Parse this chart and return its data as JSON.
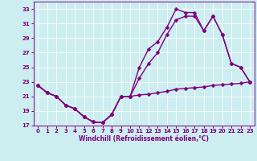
{
  "bg_color": "#cceef0",
  "grid_color": "#ffffff",
  "line_color": "#800080",
  "markersize": 2.5,
  "linewidth": 1.0,
  "xlabel": "Windchill (Refroidissement éolien,°C)",
  "xlabel_color": "#800080",
  "tick_color": "#800080",
  "xlim": [
    -0.5,
    23.5
  ],
  "ylim": [
    17,
    34
  ],
  "yticks": [
    17,
    19,
    21,
    23,
    25,
    27,
    29,
    31,
    33
  ],
  "xticks": [
    0,
    1,
    2,
    3,
    4,
    5,
    6,
    7,
    8,
    9,
    10,
    11,
    12,
    13,
    14,
    15,
    16,
    17,
    18,
    19,
    20,
    21,
    22,
    23
  ],
  "line1_x": [
    0,
    1,
    2,
    3,
    4,
    5,
    6,
    7,
    8,
    9,
    10,
    11,
    12,
    13,
    14,
    15,
    16,
    17,
    18,
    19,
    20,
    21,
    22,
    23
  ],
  "line1_y": [
    22.5,
    21.5,
    21.0,
    19.8,
    19.3,
    18.2,
    17.5,
    17.4,
    18.5,
    21.0,
    21.0,
    21.2,
    21.3,
    21.5,
    21.7,
    22.0,
    22.1,
    22.2,
    22.3,
    22.5,
    22.6,
    22.7,
    22.8,
    23.0
  ],
  "line2_x": [
    0,
    1,
    2,
    3,
    4,
    5,
    6,
    7,
    8,
    9,
    10,
    11,
    12,
    13,
    14,
    15,
    16,
    17,
    18,
    19,
    20,
    21,
    22,
    23
  ],
  "line2_y": [
    22.5,
    21.5,
    21.0,
    19.8,
    19.3,
    18.2,
    17.5,
    17.4,
    18.5,
    21.0,
    21.0,
    25.0,
    27.5,
    28.5,
    30.5,
    33.0,
    32.5,
    32.5,
    30.0,
    32.0,
    29.5,
    25.5,
    25.0,
    23.0
  ],
  "line3_x": [
    0,
    1,
    2,
    3,
    4,
    5,
    6,
    7,
    8,
    9,
    10,
    11,
    12,
    13,
    14,
    15,
    16,
    17,
    18,
    19,
    20,
    21,
    22,
    23
  ],
  "line3_y": [
    22.5,
    21.5,
    21.0,
    19.8,
    19.3,
    18.2,
    17.5,
    17.4,
    18.5,
    21.0,
    21.0,
    23.5,
    25.5,
    27.0,
    29.5,
    31.5,
    32.0,
    32.0,
    30.0,
    32.0,
    29.5,
    25.5,
    25.0,
    23.0
  ]
}
